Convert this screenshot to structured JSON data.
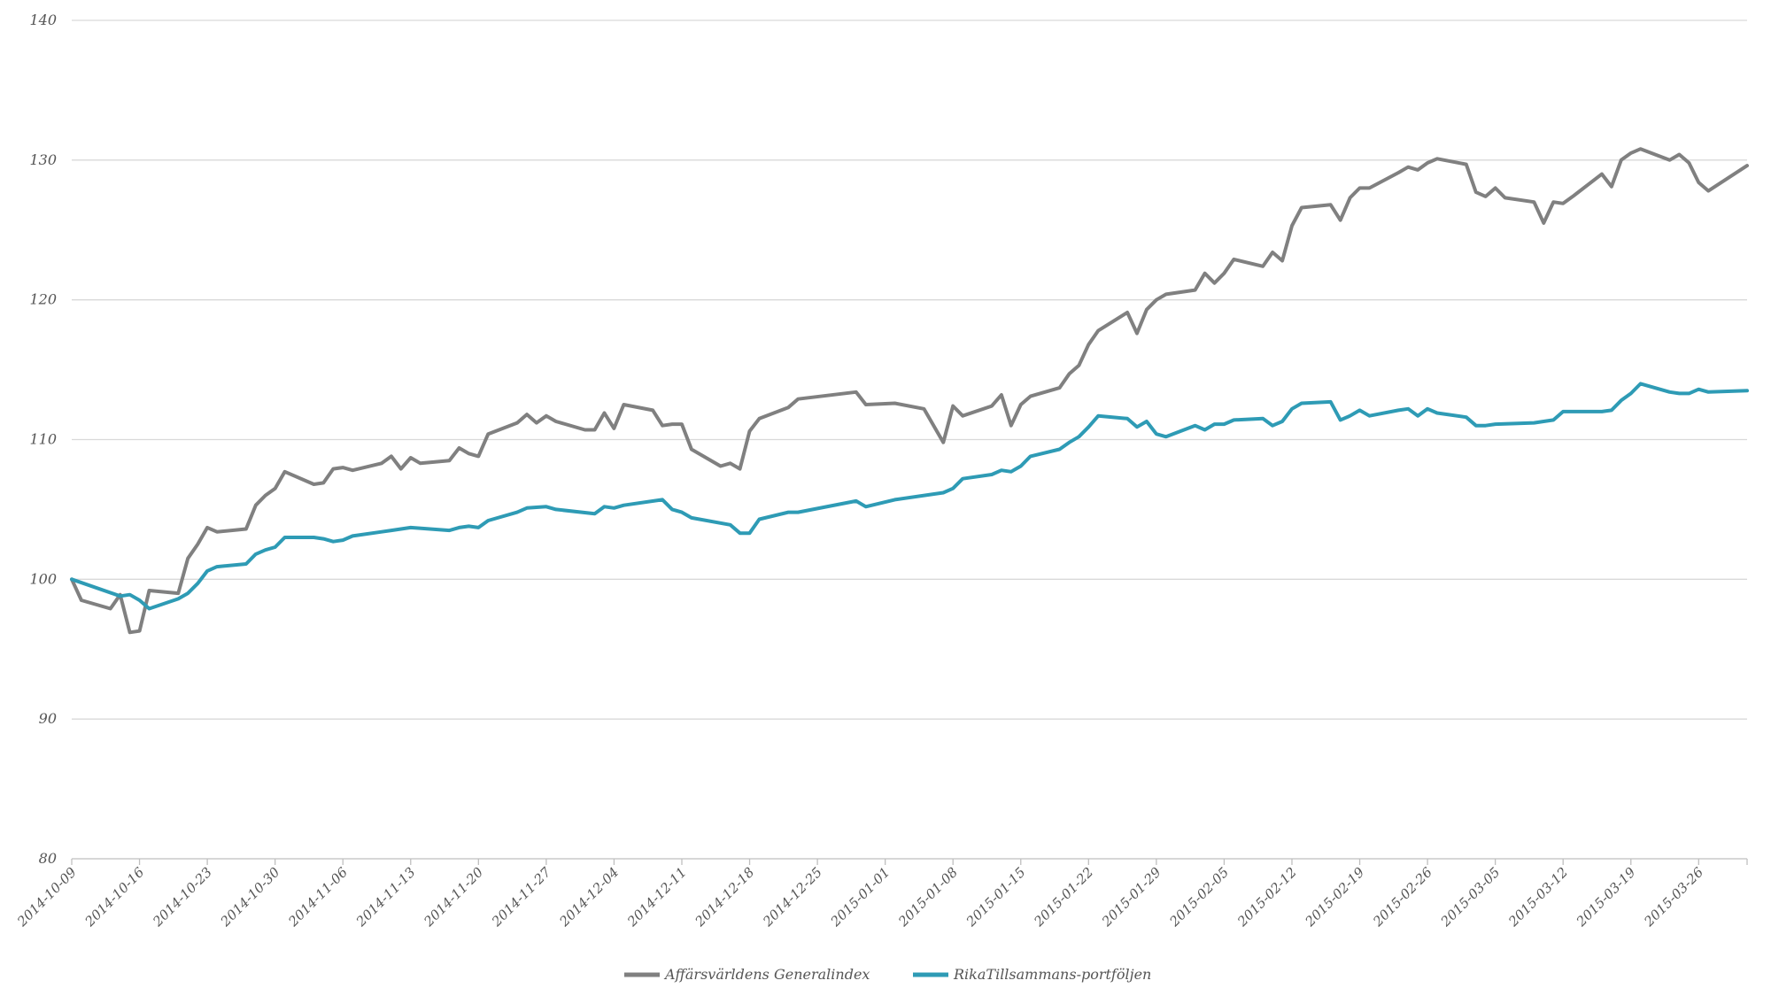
{
  "chart_data": {
    "type": "line",
    "title": "",
    "xlabel": "",
    "ylabel": "",
    "ylim": [
      80,
      140
    ],
    "yticks": [
      "80",
      "90",
      "100",
      "110",
      "120",
      "130",
      "140"
    ],
    "x_start": "2014-10-09",
    "x_end": "2015-03-31",
    "x_tick_labels": [
      "2014-10-09",
      "2014-10-16",
      "2014-10-23",
      "2014-10-30",
      "2014-11-06",
      "2014-11-13",
      "2014-11-20",
      "2014-11-27",
      "2014-12-04",
      "2014-12-11",
      "2014-12-18",
      "2014-12-25",
      "2015-01-01",
      "2015-01-08",
      "2015-01-15",
      "2015-01-22",
      "2015-01-29",
      "2015-02-05",
      "2015-02-12",
      "2015-02-19",
      "2015-02-26",
      "2015-03-05",
      "2015-03-12",
      "2015-03-19",
      "2015-03-26"
    ],
    "grid": true,
    "legend_position": "bottom",
    "series": [
      {
        "name": "Affärsvärldens Generalindex",
        "color": "#808080",
        "points": [
          [
            "2014-10-09",
            100.0
          ],
          [
            "2014-10-10",
            98.5
          ],
          [
            "2014-10-13",
            97.9
          ],
          [
            "2014-10-14",
            98.9
          ],
          [
            "2014-10-15",
            96.2
          ],
          [
            "2014-10-16",
            96.3
          ],
          [
            "2014-10-17",
            99.2
          ],
          [
            "2014-10-20",
            99.0
          ],
          [
            "2014-10-21",
            101.5
          ],
          [
            "2014-10-22",
            102.5
          ],
          [
            "2014-10-23",
            103.7
          ],
          [
            "2014-10-24",
            103.4
          ],
          [
            "2014-10-27",
            103.6
          ],
          [
            "2014-10-28",
            105.3
          ],
          [
            "2014-10-29",
            106.0
          ],
          [
            "2014-10-30",
            106.5
          ],
          [
            "2014-10-31",
            107.7
          ],
          [
            "2014-11-03",
            106.8
          ],
          [
            "2014-11-04",
            106.9
          ],
          [
            "2014-11-05",
            107.9
          ],
          [
            "2014-11-06",
            108.0
          ],
          [
            "2014-11-07",
            107.8
          ],
          [
            "2014-11-10",
            108.3
          ],
          [
            "2014-11-11",
            108.8
          ],
          [
            "2014-11-12",
            107.9
          ],
          [
            "2014-11-13",
            108.7
          ],
          [
            "2014-11-14",
            108.3
          ],
          [
            "2014-11-17",
            108.5
          ],
          [
            "2014-11-18",
            109.4
          ],
          [
            "2014-11-19",
            109.0
          ],
          [
            "2014-11-20",
            108.8
          ],
          [
            "2014-11-21",
            110.4
          ],
          [
            "2014-11-24",
            111.2
          ],
          [
            "2014-11-25",
            111.8
          ],
          [
            "2014-11-26",
            111.2
          ],
          [
            "2014-11-27",
            111.7
          ],
          [
            "2014-11-28",
            111.3
          ],
          [
            "2014-12-01",
            110.7
          ],
          [
            "2014-12-02",
            110.7
          ],
          [
            "2014-12-03",
            111.9
          ],
          [
            "2014-12-04",
            110.8
          ],
          [
            "2014-12-05",
            112.5
          ],
          [
            "2014-12-08",
            112.1
          ],
          [
            "2014-12-09",
            111.0
          ],
          [
            "2014-12-10",
            111.1
          ],
          [
            "2014-12-11",
            111.1
          ],
          [
            "2014-12-12",
            109.3
          ],
          [
            "2014-12-15",
            108.1
          ],
          [
            "2014-12-16",
            108.3
          ],
          [
            "2014-12-17",
            107.9
          ],
          [
            "2014-12-18",
            110.6
          ],
          [
            "2014-12-19",
            111.5
          ],
          [
            "2014-12-22",
            112.3
          ],
          [
            "2014-12-23",
            112.9
          ],
          [
            "2014-12-29",
            113.4
          ],
          [
            "2014-12-30",
            112.5
          ],
          [
            "2015-01-02",
            112.6
          ],
          [
            "2015-01-05",
            112.2
          ],
          [
            "2015-01-07",
            109.8
          ],
          [
            "2015-01-08",
            112.4
          ],
          [
            "2015-01-09",
            111.7
          ],
          [
            "2015-01-12",
            112.4
          ],
          [
            "2015-01-13",
            113.2
          ],
          [
            "2015-01-14",
            111.0
          ],
          [
            "2015-01-15",
            112.5
          ],
          [
            "2015-01-16",
            113.1
          ],
          [
            "2015-01-19",
            113.7
          ],
          [
            "2015-01-20",
            114.7
          ],
          [
            "2015-01-21",
            115.3
          ],
          [
            "2015-01-22",
            116.8
          ],
          [
            "2015-01-23",
            117.8
          ],
          [
            "2015-01-26",
            119.1
          ],
          [
            "2015-01-27",
            117.6
          ],
          [
            "2015-01-28",
            119.3
          ],
          [
            "2015-01-29",
            120.0
          ],
          [
            "2015-01-30",
            120.4
          ],
          [
            "2015-02-02",
            120.7
          ],
          [
            "2015-02-03",
            121.9
          ],
          [
            "2015-02-04",
            121.2
          ],
          [
            "2015-02-05",
            121.9
          ],
          [
            "2015-02-06",
            122.9
          ],
          [
            "2015-02-09",
            122.4
          ],
          [
            "2015-02-10",
            123.4
          ],
          [
            "2015-02-11",
            122.8
          ],
          [
            "2015-02-12",
            125.3
          ],
          [
            "2015-02-13",
            126.6
          ],
          [
            "2015-02-16",
            126.8
          ],
          [
            "2015-02-17",
            125.7
          ],
          [
            "2015-02-18",
            127.3
          ],
          [
            "2015-02-19",
            128.0
          ],
          [
            "2015-02-20",
            128.0
          ],
          [
            "2015-02-23",
            129.1
          ],
          [
            "2015-02-24",
            129.5
          ],
          [
            "2015-02-25",
            129.3
          ],
          [
            "2015-02-26",
            129.8
          ],
          [
            "2015-02-27",
            130.1
          ],
          [
            "2015-03-02",
            129.7
          ],
          [
            "2015-03-03",
            127.7
          ],
          [
            "2015-03-04",
            127.4
          ],
          [
            "2015-03-05",
            128.0
          ],
          [
            "2015-03-06",
            127.3
          ],
          [
            "2015-03-09",
            127.0
          ],
          [
            "2015-03-10",
            125.5
          ],
          [
            "2015-03-11",
            127.0
          ],
          [
            "2015-03-12",
            126.9
          ],
          [
            "2015-03-13",
            127.4
          ],
          [
            "2015-03-16",
            129.0
          ],
          [
            "2015-03-17",
            128.1
          ],
          [
            "2015-03-18",
            130.0
          ],
          [
            "2015-03-19",
            130.5
          ],
          [
            "2015-03-20",
            130.8
          ],
          [
            "2015-03-23",
            130.0
          ],
          [
            "2015-03-24",
            130.4
          ],
          [
            "2015-03-25",
            129.8
          ],
          [
            "2015-03-26",
            128.4
          ],
          [
            "2015-03-27",
            127.8
          ],
          [
            "2015-03-31",
            129.6
          ]
        ]
      },
      {
        "name": "RikaTillsammans-portföljen",
        "color": "#2e9bb5",
        "points": [
          [
            "2014-10-09",
            100.0
          ],
          [
            "2014-10-14",
            98.8
          ],
          [
            "2014-10-15",
            98.9
          ],
          [
            "2014-10-16",
            98.5
          ],
          [
            "2014-10-17",
            97.9
          ],
          [
            "2014-10-20",
            98.6
          ],
          [
            "2014-10-21",
            99.0
          ],
          [
            "2014-10-22",
            99.7
          ],
          [
            "2014-10-23",
            100.6
          ],
          [
            "2014-10-24",
            100.9
          ],
          [
            "2014-10-27",
            101.1
          ],
          [
            "2014-10-28",
            101.8
          ],
          [
            "2014-10-29",
            102.1
          ],
          [
            "2014-10-30",
            102.3
          ],
          [
            "2014-10-31",
            103.0
          ],
          [
            "2014-11-03",
            103.0
          ],
          [
            "2014-11-04",
            102.9
          ],
          [
            "2014-11-05",
            102.7
          ],
          [
            "2014-11-06",
            102.8
          ],
          [
            "2014-11-07",
            103.1
          ],
          [
            "2014-11-10",
            103.4
          ],
          [
            "2014-11-11",
            103.5
          ],
          [
            "2014-11-12",
            103.6
          ],
          [
            "2014-11-13",
            103.7
          ],
          [
            "2014-11-17",
            103.5
          ],
          [
            "2014-11-18",
            103.7
          ],
          [
            "2014-11-19",
            103.8
          ],
          [
            "2014-11-20",
            103.7
          ],
          [
            "2014-11-21",
            104.2
          ],
          [
            "2014-11-24",
            104.8
          ],
          [
            "2014-11-25",
            105.1
          ],
          [
            "2014-11-27",
            105.2
          ],
          [
            "2014-11-28",
            105.0
          ],
          [
            "2014-12-02",
            104.7
          ],
          [
            "2014-12-03",
            105.2
          ],
          [
            "2014-12-04",
            105.1
          ],
          [
            "2014-12-05",
            105.3
          ],
          [
            "2014-12-09",
            105.7
          ],
          [
            "2014-12-10",
            105.0
          ],
          [
            "2014-12-11",
            104.8
          ],
          [
            "2014-12-12",
            104.4
          ],
          [
            "2014-12-16",
            103.9
          ],
          [
            "2014-12-17",
            103.3
          ],
          [
            "2014-12-18",
            103.3
          ],
          [
            "2014-12-19",
            104.3
          ],
          [
            "2014-12-22",
            104.8
          ],
          [
            "2014-12-23",
            104.8
          ],
          [
            "2014-12-29",
            105.6
          ],
          [
            "2014-12-30",
            105.2
          ],
          [
            "2015-01-02",
            105.7
          ],
          [
            "2015-01-07",
            106.2
          ],
          [
            "2015-01-08",
            106.5
          ],
          [
            "2015-01-09",
            107.2
          ],
          [
            "2015-01-12",
            107.5
          ],
          [
            "2015-01-13",
            107.8
          ],
          [
            "2015-01-14",
            107.7
          ],
          [
            "2015-01-15",
            108.1
          ],
          [
            "2015-01-16",
            108.8
          ],
          [
            "2015-01-19",
            109.3
          ],
          [
            "2015-01-20",
            109.8
          ],
          [
            "2015-01-21",
            110.2
          ],
          [
            "2015-01-22",
            110.9
          ],
          [
            "2015-01-23",
            111.7
          ],
          [
            "2015-01-26",
            111.5
          ],
          [
            "2015-01-27",
            110.9
          ],
          [
            "2015-01-28",
            111.3
          ],
          [
            "2015-01-29",
            110.4
          ],
          [
            "2015-01-30",
            110.2
          ],
          [
            "2015-02-02",
            111.0
          ],
          [
            "2015-02-03",
            110.7
          ],
          [
            "2015-02-04",
            111.1
          ],
          [
            "2015-02-05",
            111.1
          ],
          [
            "2015-02-06",
            111.4
          ],
          [
            "2015-02-09",
            111.5
          ],
          [
            "2015-02-10",
            111.0
          ],
          [
            "2015-02-11",
            111.3
          ],
          [
            "2015-02-12",
            112.2
          ],
          [
            "2015-02-13",
            112.6
          ],
          [
            "2015-02-16",
            112.7
          ],
          [
            "2015-02-17",
            111.4
          ],
          [
            "2015-02-18",
            111.7
          ],
          [
            "2015-02-19",
            112.1
          ],
          [
            "2015-02-20",
            111.7
          ],
          [
            "2015-02-23",
            112.1
          ],
          [
            "2015-02-24",
            112.2
          ],
          [
            "2015-02-25",
            111.7
          ],
          [
            "2015-02-26",
            112.2
          ],
          [
            "2015-02-27",
            111.9
          ],
          [
            "2015-03-02",
            111.6
          ],
          [
            "2015-03-03",
            111.0
          ],
          [
            "2015-03-04",
            111.0
          ],
          [
            "2015-03-05",
            111.1
          ],
          [
            "2015-03-09",
            111.2
          ],
          [
            "2015-03-10",
            111.3
          ],
          [
            "2015-03-11",
            111.4
          ],
          [
            "2015-03-12",
            112.0
          ],
          [
            "2015-03-16",
            112.0
          ],
          [
            "2015-03-17",
            112.1
          ],
          [
            "2015-03-18",
            112.8
          ],
          [
            "2015-03-19",
            113.3
          ],
          [
            "2015-03-20",
            114.0
          ],
          [
            "2015-03-23",
            113.4
          ],
          [
            "2015-03-24",
            113.3
          ],
          [
            "2015-03-25",
            113.3
          ],
          [
            "2015-03-26",
            113.6
          ],
          [
            "2015-03-27",
            113.4
          ],
          [
            "2015-03-31",
            113.5
          ]
        ]
      }
    ]
  }
}
